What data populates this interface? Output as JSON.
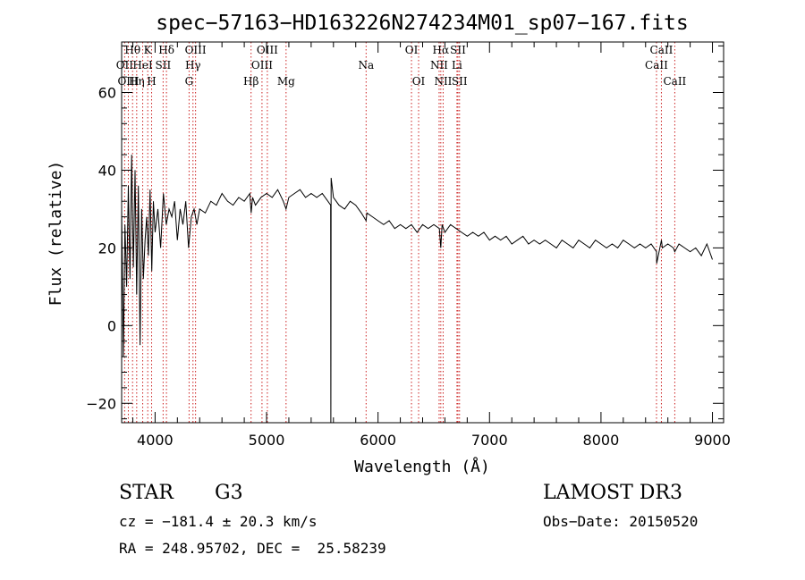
{
  "chart_data": {
    "type": "line",
    "title": "spec−57163−HD163226N274234M01_sp07−167.fits",
    "xlabel": "Wavelength (Å)",
    "ylabel": "Flux (relative)",
    "xlim": [
      3700,
      9100
    ],
    "ylim": [
      -25,
      73
    ],
    "xticks": [
      4000,
      5000,
      6000,
      7000,
      8000,
      9000
    ],
    "xtick_labels": [
      "4000",
      "5000",
      "6000",
      "7000",
      "8000",
      "9000"
    ],
    "yticks": [
      -20,
      0,
      20,
      40,
      60
    ],
    "ytick_labels": [
      "−20",
      "0",
      "20",
      "40",
      "60"
    ],
    "grid": false,
    "series": [
      {
        "name": "spectrum",
        "x": [
          3700,
          3715,
          3730,
          3745,
          3760,
          3775,
          3790,
          3805,
          3820,
          3835,
          3850,
          3865,
          3880,
          3895,
          3910,
          3925,
          3940,
          3955,
          3970,
          3985,
          4000,
          4025,
          4050,
          4075,
          4100,
          4125,
          4150,
          4175,
          4200,
          4225,
          4250,
          4275,
          4300,
          4325,
          4350,
          4375,
          4400,
          4450,
          4500,
          4550,
          4600,
          4650,
          4700,
          4750,
          4800,
          4850,
          4862,
          4875,
          4900,
          4950,
          5000,
          5050,
          5100,
          5150,
          5175,
          5200,
          5250,
          5300,
          5350,
          5400,
          5450,
          5500,
          5550,
          5575,
          5577,
          5579,
          5600,
          5650,
          5700,
          5750,
          5800,
          5850,
          5893,
          5900,
          5950,
          6000,
          6050,
          6100,
          6150,
          6200,
          6250,
          6300,
          6350,
          6400,
          6450,
          6500,
          6550,
          6563,
          6575,
          6600,
          6650,
          6700,
          6750,
          6800,
          6850,
          6900,
          6950,
          7000,
          7050,
          7100,
          7150,
          7200,
          7250,
          7300,
          7350,
          7400,
          7450,
          7500,
          7550,
          7600,
          7650,
          7700,
          7750,
          7800,
          7850,
          7900,
          7950,
          8000,
          8050,
          8100,
          8150,
          8200,
          8250,
          8300,
          8350,
          8400,
          8450,
          8498,
          8500,
          8542,
          8550,
          8600,
          8650,
          8662,
          8700,
          8750,
          8800,
          8850,
          8900,
          8950,
          9000
        ],
        "values": [
          30,
          -8,
          26,
          10,
          36,
          12,
          44,
          15,
          40,
          8,
          36,
          -5,
          30,
          12,
          22,
          28,
          18,
          35,
          14,
          32,
          24,
          30,
          20,
          34,
          26,
          30,
          28,
          32,
          22,
          30,
          26,
          32,
          20,
          28,
          30,
          26,
          30,
          29,
          32,
          31,
          34,
          32,
          31,
          33,
          32,
          34,
          29,
          33,
          31,
          33,
          34,
          33,
          35,
          32,
          30,
          33,
          34,
          35,
          33,
          34,
          33,
          34,
          32,
          31,
          -28,
          38,
          33,
          31,
          30,
          32,
          31,
          29,
          27,
          29,
          28,
          27,
          26,
          27,
          25,
          26,
          25,
          26,
          24,
          26,
          25,
          26,
          25,
          20,
          26,
          24,
          26,
          25,
          24,
          23,
          24,
          23,
          24,
          22,
          23,
          22,
          23,
          21,
          22,
          23,
          21,
          22,
          21,
          22,
          21,
          20,
          22,
          21,
          20,
          22,
          21,
          20,
          22,
          21,
          20,
          21,
          20,
          22,
          21,
          20,
          21,
          20,
          21,
          19,
          16,
          22,
          20,
          21,
          20,
          19,
          21,
          20,
          19,
          20,
          18,
          21,
          17
        ]
      }
    ],
    "line_markers": [
      {
        "label": "Hθ",
        "wavelength": 3798,
        "row": 1
      },
      {
        "label": "OII",
        "wavelength": 3727,
        "row": 2
      },
      {
        "label": "OIII",
        "wavelength": 3760,
        "row": 3
      },
      {
        "label": "Hη",
        "wavelength": 3835,
        "row": 3
      },
      {
        "label": "HeI",
        "wavelength": 3889,
        "row": 2
      },
      {
        "label": "K",
        "wavelength": 3934,
        "row": 1
      },
      {
        "label": "H",
        "wavelength": 3969,
        "row": 3
      },
      {
        "label": "SII",
        "wavelength": 4072,
        "row": 2
      },
      {
        "label": "Hδ",
        "wavelength": 4102,
        "row": 1
      },
      {
        "label": "OIII",
        "wavelength": 4363,
        "row": 1
      },
      {
        "label": "Hγ",
        "wavelength": 4340,
        "row": 2
      },
      {
        "label": "G",
        "wavelength": 4305,
        "row": 3
      },
      {
        "label": "Hβ",
        "wavelength": 4861,
        "row": 3
      },
      {
        "label": "OIII",
        "wavelength": 4959,
        "row": 2
      },
      {
        "label": "OIII",
        "wavelength": 5007,
        "row": 1
      },
      {
        "label": "Mg",
        "wavelength": 5175,
        "row": 3
      },
      {
        "label": "Na",
        "wavelength": 5893,
        "row": 2
      },
      {
        "label": "OI",
        "wavelength": 6300,
        "row": 1
      },
      {
        "label": "OI",
        "wavelength": 6364,
        "row": 3
      },
      {
        "label": "Hα",
        "wavelength": 6563,
        "row": 1
      },
      {
        "label": "NII",
        "wavelength": 6548,
        "row": 2
      },
      {
        "label": "NII",
        "wavelength": 6584,
        "row": 3
      },
      {
        "label": "SII",
        "wavelength": 6717,
        "row": 1
      },
      {
        "label": "Li",
        "wavelength": 6708,
        "row": 2
      },
      {
        "label": "SII",
        "wavelength": 6731,
        "row": 3
      },
      {
        "label": "CaII",
        "wavelength": 8542,
        "row": 1
      },
      {
        "label": "CaII",
        "wavelength": 8498,
        "row": 2
      },
      {
        "label": "CaII",
        "wavelength": 8662,
        "row": 3
      }
    ],
    "marker_color": "#cc2222",
    "line_color": "#000000"
  },
  "info": {
    "object_class": "STAR",
    "subclass": "G3",
    "survey": "LAMOST DR3",
    "redshift": "cz = −181.4 ± 20.3 km/s",
    "obs_date": "Obs−Date: 20150520",
    "coords": "RA = 248.95702, DEC =  25.58239"
  }
}
